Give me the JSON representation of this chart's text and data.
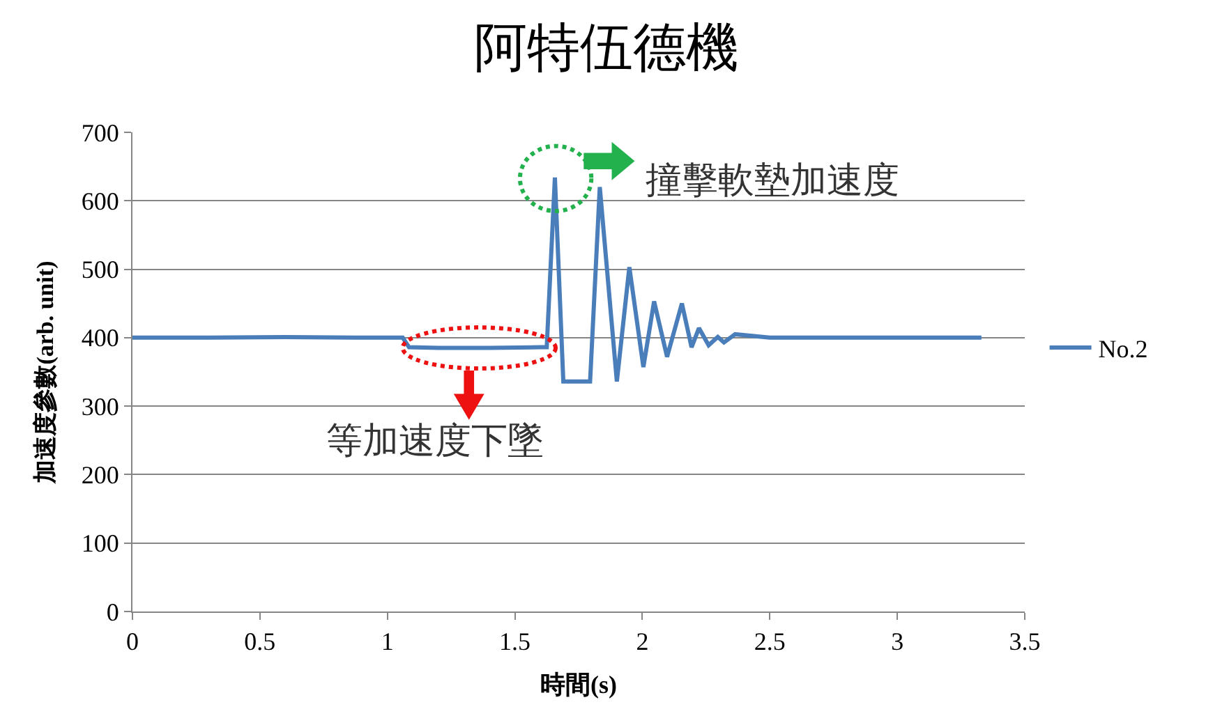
{
  "chart_data": {
    "type": "line",
    "title": "阿特伍德機",
    "xlabel": "時間(s)",
    "ylabel": "加速度參數(arb. unit)",
    "series": [
      {
        "name": "No.2",
        "color": "#4a7ebb",
        "x": [
          0,
          0.3,
          0.6,
          0.9,
          1.06,
          1.085,
          1.2,
          1.4,
          1.6,
          1.625,
          1.657,
          1.69,
          1.795,
          1.833,
          1.9,
          1.949,
          2.004,
          2.046,
          2.097,
          2.155,
          2.193,
          2.222,
          2.26,
          2.296,
          2.32,
          2.364,
          2.5,
          2.8,
          3.1,
          3.33
        ],
        "values": [
          400,
          400,
          401,
          400,
          400,
          386,
          385,
          385,
          386,
          386,
          634,
          336,
          336,
          620,
          336,
          503,
          357,
          453,
          372,
          450,
          386,
          414,
          389,
          401,
          393,
          405,
          400,
          400,
          400,
          400
        ]
      }
    ],
    "xlim": [
      0,
      3.5
    ],
    "xticks": [
      0,
      0.5,
      1,
      1.5,
      2,
      2.5,
      3,
      3.5
    ],
    "ylim": [
      0,
      700
    ],
    "yticks": [
      0,
      100,
      200,
      300,
      400,
      500,
      600,
      700
    ],
    "grid": "y",
    "legend": "right",
    "marker": "none",
    "line_style": "solid",
    "annotations": [
      "撞擊軟墊加速度",
      "等加速度下墜"
    ]
  }
}
